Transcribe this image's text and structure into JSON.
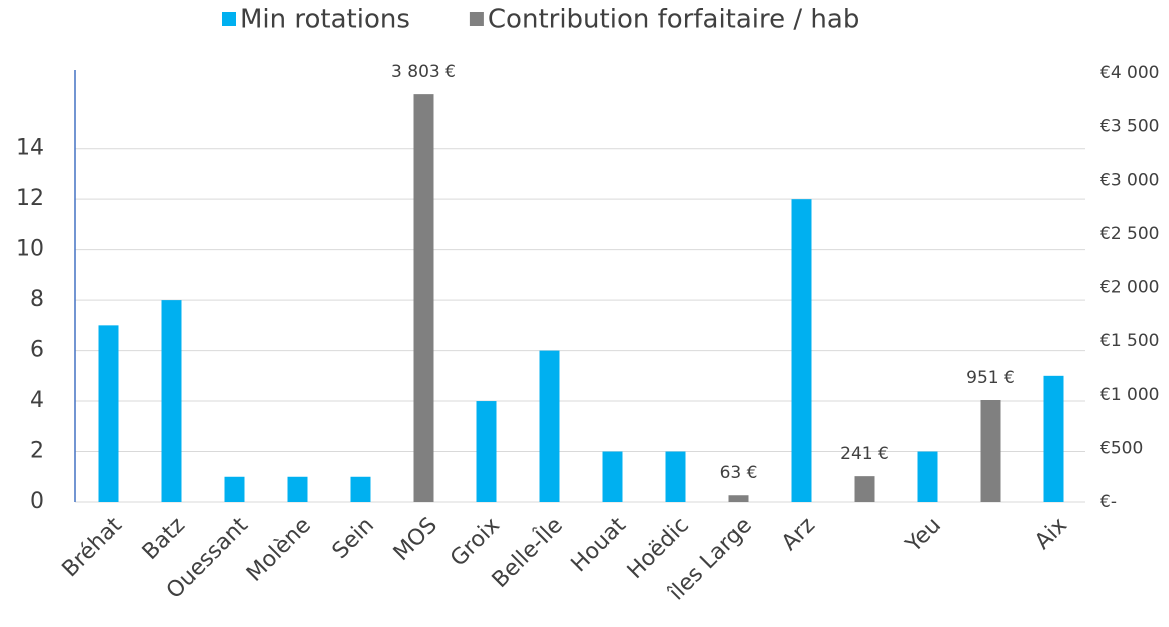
{
  "chart_data": {
    "type": "bar",
    "categories": [
      "Bréhat",
      "Batz",
      "Ouessant",
      "Molène",
      "Sein",
      "MOS",
      "Groix",
      "Belle-Île",
      "Houat",
      "Hoëdic",
      "îles Large",
      "Arz",
      null,
      "Yeu",
      null,
      "Aix"
    ],
    "series": [
      {
        "name": "Min rotations",
        "color": "#00b0f0",
        "values": [
          7,
          8,
          1,
          1,
          1,
          null,
          4,
          6,
          2,
          2,
          null,
          12,
          null,
          2,
          null,
          5
        ]
      },
      {
        "name": "Contribution forfaitaire / hab",
        "color": "#808080",
        "axis": "y2",
        "values": [
          null,
          null,
          null,
          null,
          null,
          3803,
          null,
          null,
          null,
          null,
          63,
          null,
          241,
          null,
          951,
          null
        ],
        "value_labels": [
          null,
          null,
          null,
          null,
          null,
          "3 803 €",
          null,
          null,
          null,
          null,
          "63 €",
          null,
          "241 €",
          null,
          "951 €",
          null
        ]
      }
    ],
    "ylim": [
      0,
      17
    ],
    "yticks": [
      0,
      2,
      4,
      6,
      8,
      10,
      12,
      14
    ],
    "y2lim": [
      0,
      4000
    ],
    "y2ticks": [
      {
        "value": 0,
        "label": "€-"
      },
      {
        "value": 500,
        "label": "€500"
      },
      {
        "value": 1000,
        "label": "€1 000"
      },
      {
        "value": 1500,
        "label": "€1 500"
      },
      {
        "value": 2000,
        "label": "€2 000"
      },
      {
        "value": 2500,
        "label": "€2 500"
      },
      {
        "value": 3000,
        "label": "€3 000"
      },
      {
        "value": 3500,
        "label": "€3 500"
      },
      {
        "value": 4000,
        "label": "€4 000"
      }
    ],
    "grid": true,
    "legend": "top"
  }
}
